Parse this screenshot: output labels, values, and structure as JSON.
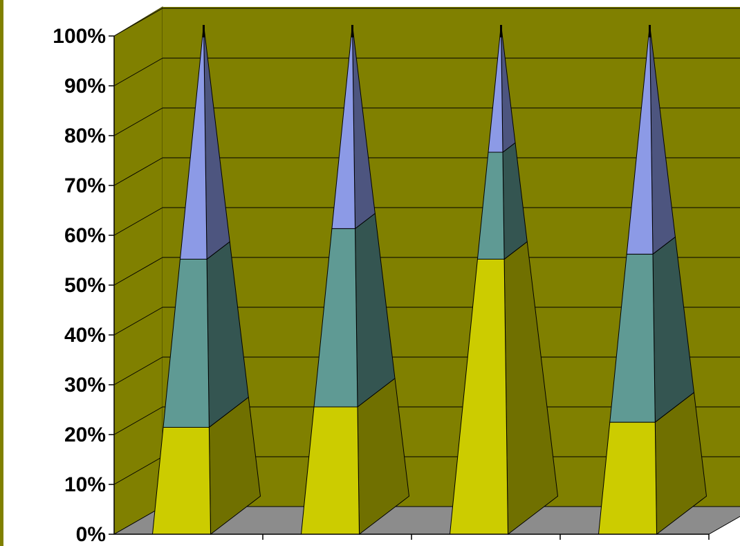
{
  "chart_data": {
    "type": "bar",
    "subtype": "3d-stacked-100-percent-pyramid",
    "title": "",
    "xlabel": "",
    "ylabel": "",
    "categories": [
      "",
      "",
      "",
      ""
    ],
    "ylim": [
      0,
      100
    ],
    "yticks": [
      "0%",
      "10%",
      "20%",
      "30%",
      "40%",
      "50%",
      "60%",
      "70%",
      "80%",
      "90%",
      "100%"
    ],
    "grid": true,
    "legend": "none",
    "series": [
      {
        "values": [
          21,
          25,
          54,
          22
        ],
        "color": "#cccc00"
      },
      {
        "values": [
          33,
          35,
          21,
          33
        ],
        "color": "#5f9a94"
      },
      {
        "values": [
          46,
          40,
          25,
          45
        ],
        "color": "#8c9ae6"
      }
    ]
  },
  "colors": {
    "wall": "#808000",
    "floor": "#8c8c8c",
    "gridline": "#000000",
    "page_border": "#808000"
  }
}
